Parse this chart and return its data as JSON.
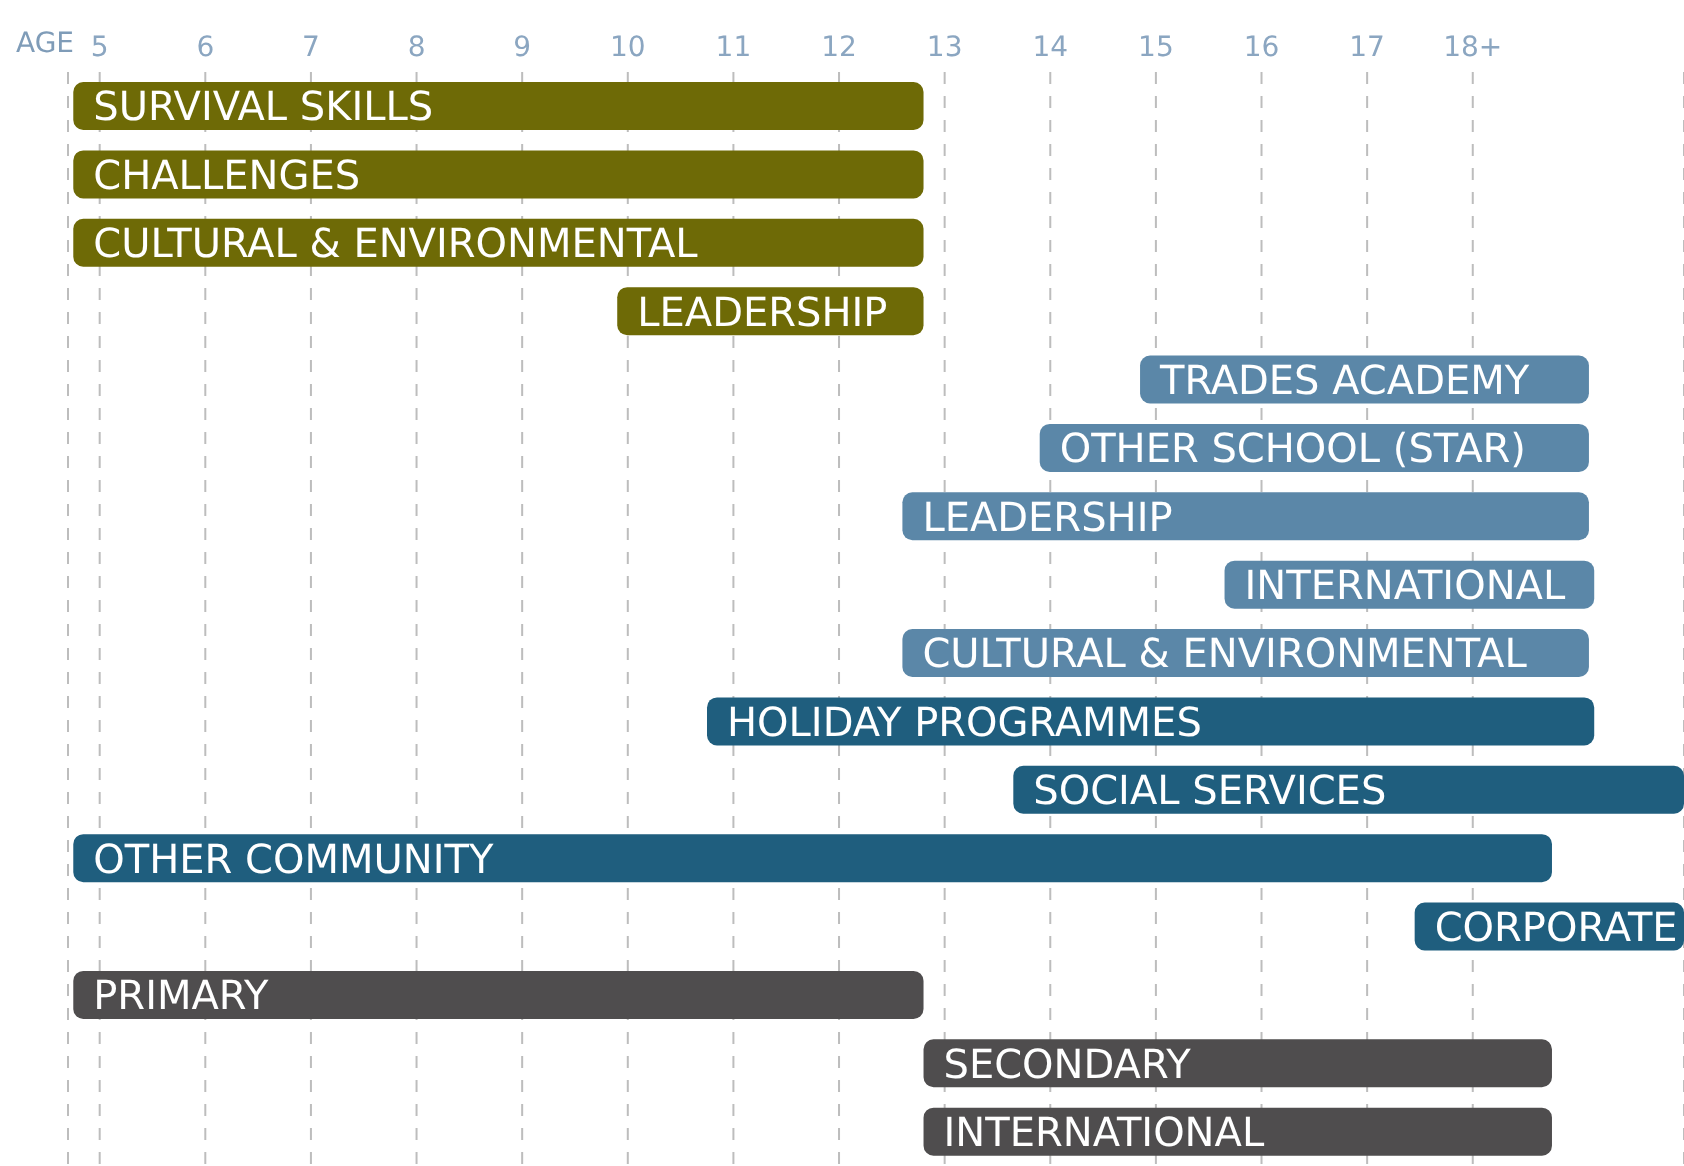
{
  "chart_data": {
    "type": "bar",
    "orientation": "horizontal",
    "xlabel": "AGE",
    "categories": [
      "SURVIVAL SKILLS",
      "CHALLENGES",
      "CULTURAL & ENVIRONMENTAL",
      "LEADERSHIP",
      "TRADES ACADEMY",
      "OTHER SCHOOL (STAR)",
      "LEADERSHIP",
      "INTERNATIONAL",
      "CULTURAL & ENVIRONMENTAL",
      "HOLIDAY PROGRAMMES",
      "SOCIAL SERVICES",
      "OTHER COMMUNITY",
      "CORPORATE",
      "PRIMARY",
      "SECONDARY",
      "INTERNATIONAL"
    ],
    "base": [
      4.75,
      4.75,
      4.75,
      9.9,
      14.85,
      13.9,
      12.6,
      15.65,
      12.6,
      10.75,
      13.65,
      4.75,
      17.45,
      4.75,
      12.8,
      12.8
    ],
    "values": [
      8.05,
      8.05,
      8.05,
      2.9,
      4.25,
      5.2,
      6.5,
      3.5,
      6.5,
      8.4,
      6.35,
      14.0,
      2.55,
      8.05,
      5.95,
      5.95
    ],
    "colors": [
      "#6e6a06",
      "#6e6a06",
      "#6e6a06",
      "#6e6a06",
      "#5b87a8",
      "#5b87a8",
      "#5b87a8",
      "#5b87a8",
      "#5b87a8",
      "#1f5e7e",
      "#1f5e7e",
      "#1f5e7e",
      "#1f5e7e",
      "#4f4d4e",
      "#4f4d4e",
      "#4f4d4e"
    ],
    "xlim": [
      4.7,
      20.0
    ],
    "xticks": [
      5,
      6,
      7,
      8,
      9,
      10,
      11,
      12,
      13,
      14,
      15,
      16,
      17,
      {
        "value": 18,
        "label": "18+"
      }
    ],
    "grid": "x",
    "legend": false,
    "tick_labels": "x"
  }
}
